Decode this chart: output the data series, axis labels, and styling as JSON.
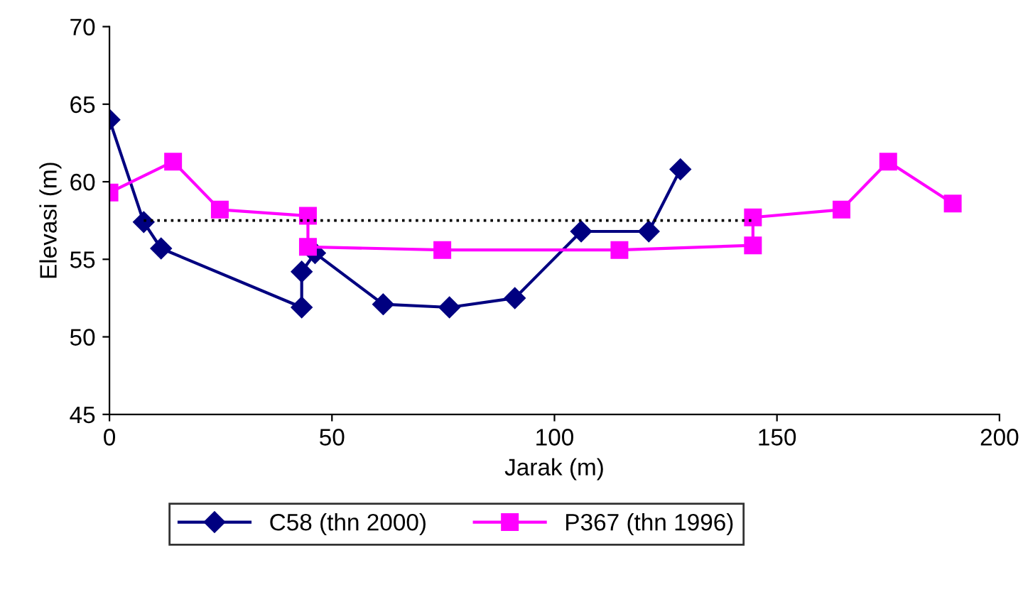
{
  "chart_data": {
    "type": "line",
    "xlabel": "Jarak (m)",
    "ylabel": "Elevasi (m)",
    "xlim": [
      0,
      200
    ],
    "xticks": [
      0,
      50,
      100,
      150,
      200
    ],
    "ylim": [
      45,
      70
    ],
    "yticks": [
      45,
      50,
      55,
      60,
      65,
      70
    ],
    "grid": false,
    "legend": "bottom",
    "line_style": "solid",
    "series": [
      {
        "name": "C58 (thn 2000)",
        "color": "#000080",
        "marker": "diamond",
        "x": [
          0,
          7.7,
          11.6,
          43.2,
          43.2,
          46.2,
          61.5,
          76.4,
          91.1,
          106.0,
          121.2,
          128.3
        ],
        "values": [
          64.0,
          57.4,
          55.7,
          51.9,
          54.2,
          55.4,
          52.1,
          51.9,
          52.5,
          56.8,
          56.8,
          60.8
        ]
      },
      {
        "name": "P367 (thn 1996)",
        "color": "#ff00ff",
        "marker": "square",
        "x": [
          0,
          14.3,
          24.8,
          44.6,
          44.6,
          74.8,
          114.6,
          144.6,
          144.6,
          164.5,
          175.0,
          189.5
        ],
        "values": [
          59.3,
          61.3,
          58.2,
          57.8,
          55.8,
          55.6,
          55.6,
          55.9,
          57.7,
          58.2,
          61.3,
          58.6
        ]
      },
      {
        "color": "#000000",
        "marker": "none",
        "line_style": "dotted",
        "x": [
          7.7,
          144.6
        ],
        "values": [
          57.5,
          57.5
        ]
      }
    ]
  }
}
